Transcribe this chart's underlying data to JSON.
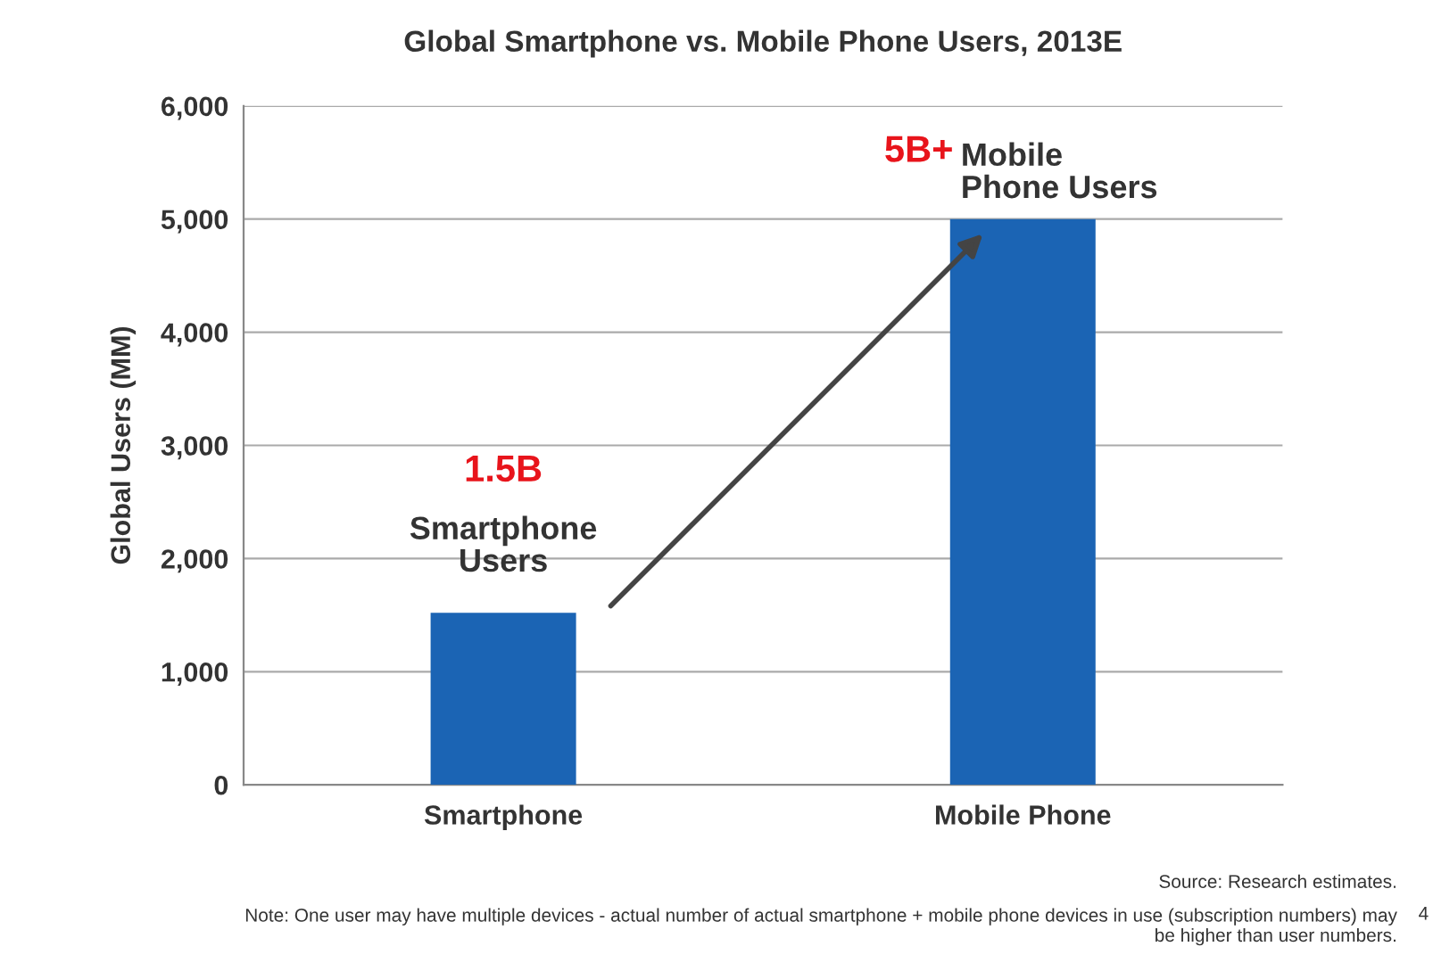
{
  "chart_data": {
    "type": "bar",
    "title": "Global Smartphone vs. Mobile Phone Users, 2013E",
    "ylabel": "Global Users (MM)",
    "categories": [
      "Smartphone",
      "Mobile Phone"
    ],
    "values": [
      1520,
      5000
    ],
    "color": "#1b64b4",
    "ylim": [
      0,
      6000
    ],
    "yticks": [
      {
        "value": 0,
        "label": "0"
      },
      {
        "value": 1000,
        "label": "1,000"
      },
      {
        "value": 2000,
        "label": "2,000"
      },
      {
        "value": 3000,
        "label": "3,000"
      },
      {
        "value": 4000,
        "label": "4,000"
      },
      {
        "value": 5000,
        "label": "5,000"
      },
      {
        "value": 6000,
        "label": "6,000"
      }
    ],
    "grid": "y",
    "annotations": [
      "1.5B",
      "Smartphone\nUsers",
      "5B+",
      "Mobile\nPhone Users",
      "Source: Research estimates.",
      "Note: One user may have multiple devices - actual number of actual smartphone + mobile phone devices in use (subscription numbers) may\nbe higher than user numbers.",
      "4"
    ]
  }
}
